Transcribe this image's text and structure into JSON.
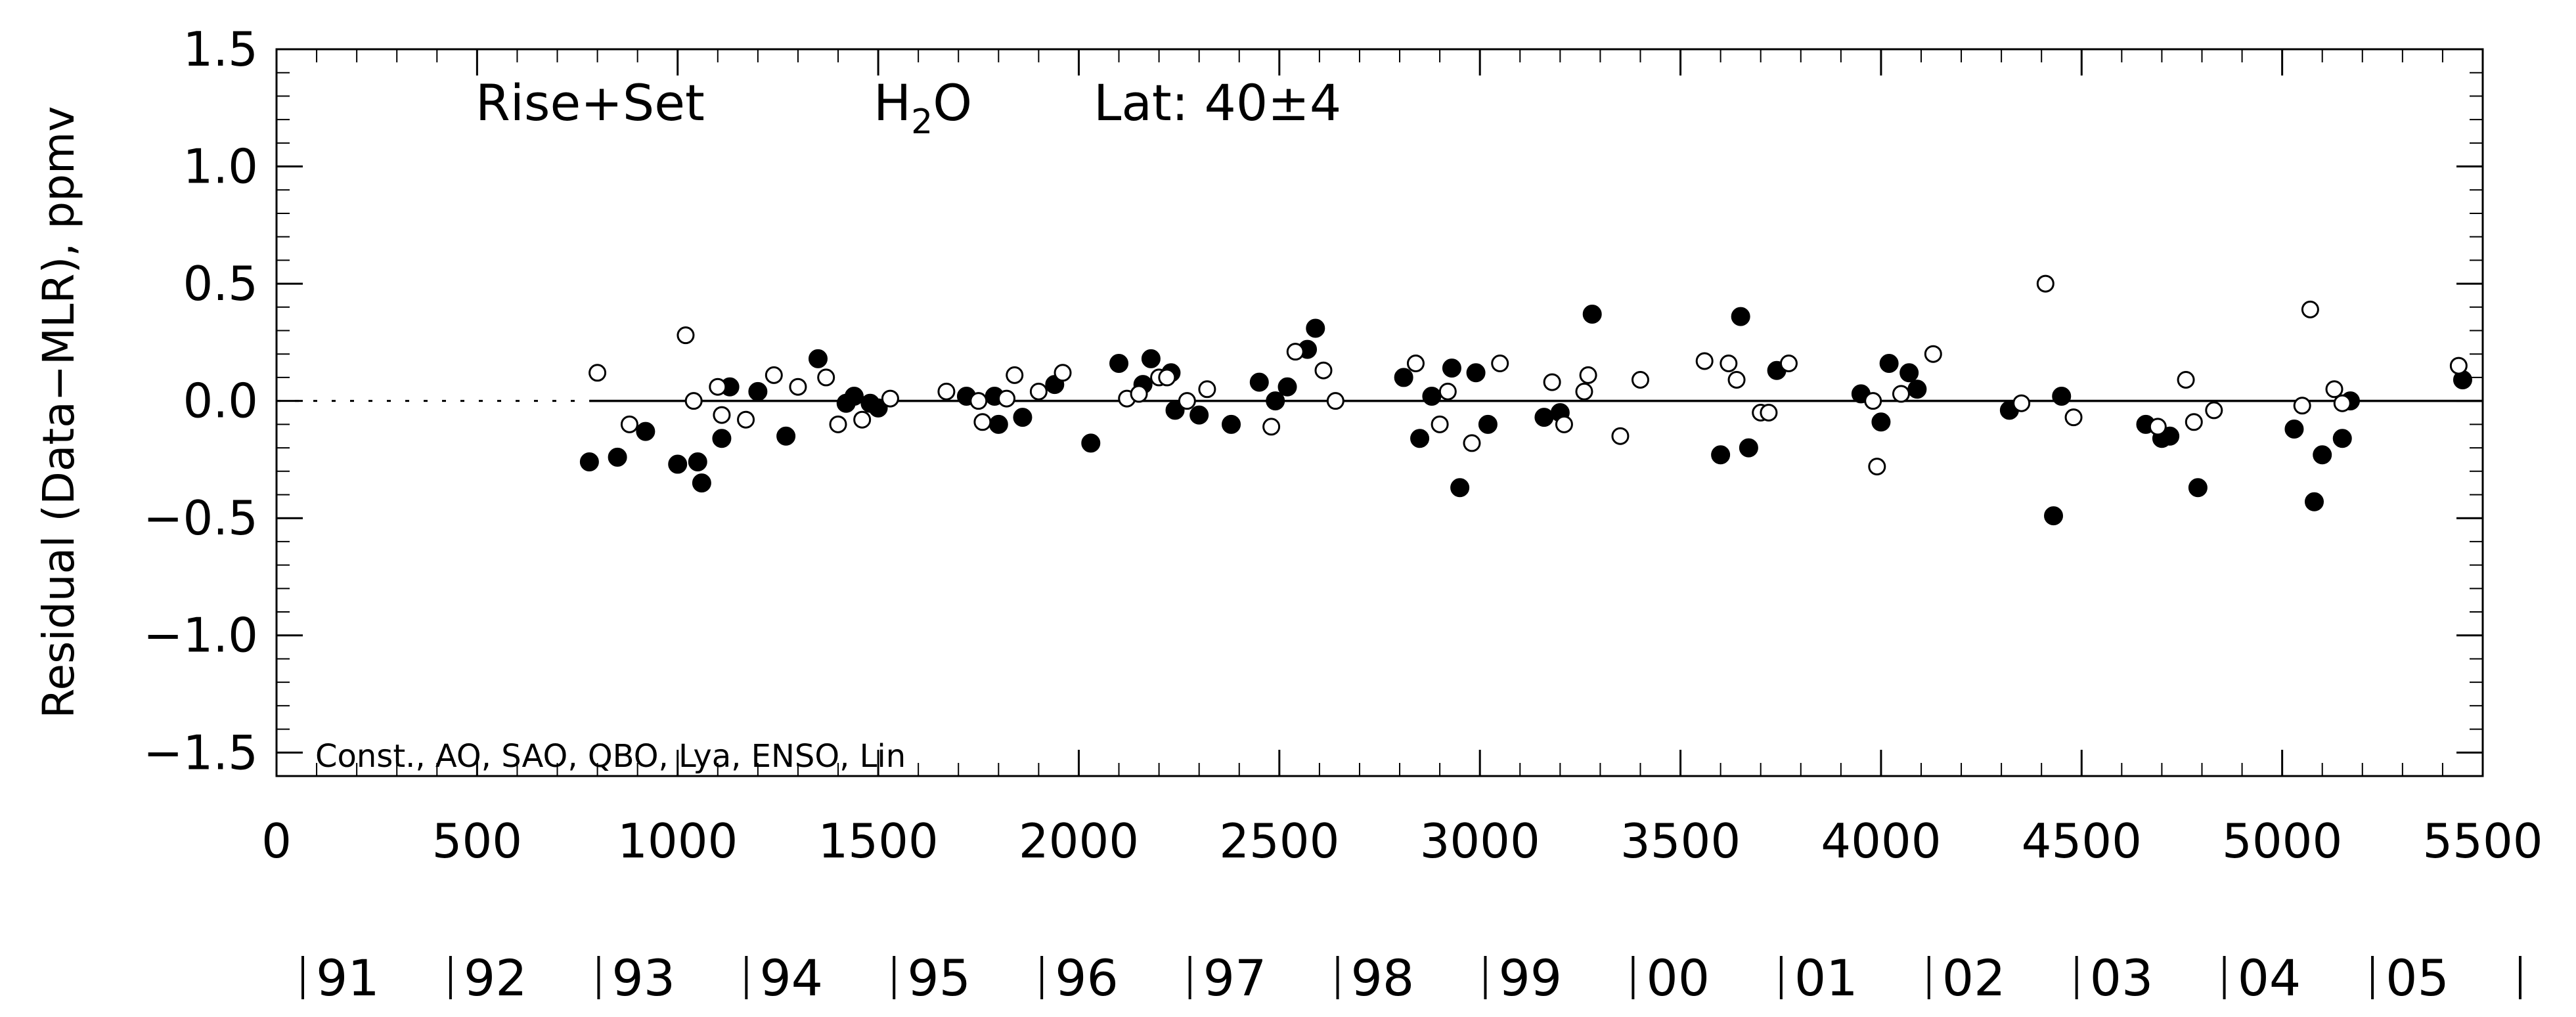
{
  "chart_data": {
    "type": "scatter",
    "annotations": {
      "mode": "Rise+Set",
      "species_main": "H",
      "species_sub": "2",
      "species_tail": "O",
      "lat": "Lat: 40±4",
      "model": "Const., AO, SAO, QBO, Lya, ENSO, Lin"
    },
    "ylabel": "Residual (Data−MLR), ppmv",
    "xlim": [
      0,
      5500
    ],
    "ylim": [
      -1.6,
      1.5
    ],
    "x_ticks": [
      0,
      500,
      1000,
      1500,
      2000,
      2500,
      3000,
      3500,
      4000,
      4500,
      5000,
      5500
    ],
    "x_tick_labels": [
      "0",
      "500",
      "1000",
      "1500",
      "2000",
      "2500",
      "3000",
      "3500",
      "4000",
      "4500",
      "5000",
      "5500"
    ],
    "y_ticks": [
      -1.5,
      -1.0,
      -0.5,
      0.0,
      0.5,
      1.0,
      1.5
    ],
    "y_tick_labels": [
      "−1.5",
      "−1.0",
      "−0.5",
      "0.0",
      "0.5",
      "1.0",
      "1.5"
    ],
    "year_labels": [
      "91",
      "92",
      "93",
      "94",
      "95",
      "96",
      "97",
      "98",
      "99",
      "00",
      "01",
      "02",
      "03",
      "04",
      "05"
    ],
    "year_starts": [
      0,
      365,
      731,
      1096,
      1461,
      1826,
      2192,
      2557,
      2922,
      3287,
      3653,
      4018,
      4383,
      4748,
      5114,
      5479
    ],
    "reference_line": {
      "y": 0,
      "dotted_until_x": 780
    },
    "series": [
      {
        "style": "filled",
        "points": [
          [
            780,
            -0.26
          ],
          [
            850,
            -0.24
          ],
          [
            920,
            -0.13
          ],
          [
            1000,
            -0.27
          ],
          [
            1050,
            -0.26
          ],
          [
            1060,
            -0.35
          ],
          [
            1110,
            -0.16
          ],
          [
            1130,
            0.06
          ],
          [
            1200,
            0.04
          ],
          [
            1270,
            -0.15
          ],
          [
            1350,
            0.18
          ],
          [
            1420,
            -0.01
          ],
          [
            1440,
            0.02
          ],
          [
            1480,
            -0.01
          ],
          [
            1500,
            -0.03
          ],
          [
            1720,
            0.02
          ],
          [
            1790,
            0.02
          ],
          [
            1800,
            -0.1
          ],
          [
            1860,
            -0.07
          ],
          [
            1940,
            0.07
          ],
          [
            2030,
            -0.18
          ],
          [
            2100,
            0.16
          ],
          [
            2160,
            0.07
          ],
          [
            2180,
            0.18
          ],
          [
            2230,
            0.12
          ],
          [
            2240,
            -0.04
          ],
          [
            2300,
            -0.06
          ],
          [
            2380,
            -0.1
          ],
          [
            2450,
            0.08
          ],
          [
            2490,
            0.0
          ],
          [
            2520,
            0.06
          ],
          [
            2570,
            0.22
          ],
          [
            2590,
            0.31
          ],
          [
            2810,
            0.1
          ],
          [
            2850,
            -0.16
          ],
          [
            2880,
            0.02
          ],
          [
            2930,
            0.14
          ],
          [
            2950,
            -0.37
          ],
          [
            2990,
            0.12
          ],
          [
            3020,
            -0.1
          ],
          [
            3160,
            -0.07
          ],
          [
            3200,
            -0.05
          ],
          [
            3280,
            0.37
          ],
          [
            3600,
            -0.23
          ],
          [
            3650,
            0.36
          ],
          [
            3670,
            -0.2
          ],
          [
            3740,
            0.13
          ],
          [
            3950,
            0.03
          ],
          [
            4000,
            -0.09
          ],
          [
            4020,
            0.16
          ],
          [
            4070,
            0.12
          ],
          [
            4090,
            0.05
          ],
          [
            4320,
            -0.04
          ],
          [
            4430,
            -0.49
          ],
          [
            4450,
            0.02
          ],
          [
            4660,
            -0.1
          ],
          [
            4700,
            -0.16
          ],
          [
            4720,
            -0.15
          ],
          [
            4790,
            -0.37
          ],
          [
            5030,
            -0.12
          ],
          [
            5080,
            -0.43
          ],
          [
            5100,
            -0.23
          ],
          [
            5150,
            -0.16
          ],
          [
            5170,
            0.0
          ],
          [
            5450,
            0.09
          ]
        ]
      },
      {
        "style": "open",
        "points": [
          [
            800,
            0.12
          ],
          [
            880,
            -0.1
          ],
          [
            1020,
            0.28
          ],
          [
            1040,
            0.0
          ],
          [
            1100,
            0.06
          ],
          [
            1110,
            -0.06
          ],
          [
            1170,
            -0.08
          ],
          [
            1240,
            0.11
          ],
          [
            1300,
            0.06
          ],
          [
            1370,
            0.1
          ],
          [
            1400,
            -0.1
          ],
          [
            1460,
            -0.08
          ],
          [
            1530,
            0.01
          ],
          [
            1670,
            0.04
          ],
          [
            1750,
            0.0
          ],
          [
            1760,
            -0.09
          ],
          [
            1820,
            0.01
          ],
          [
            1840,
            0.11
          ],
          [
            1900,
            0.04
          ],
          [
            1960,
            0.12
          ],
          [
            2120,
            0.01
          ],
          [
            2150,
            0.03
          ],
          [
            2200,
            0.1
          ],
          [
            2220,
            0.1
          ],
          [
            2270,
            0.0
          ],
          [
            2320,
            0.05
          ],
          [
            2480,
            -0.11
          ],
          [
            2540,
            0.21
          ],
          [
            2610,
            0.13
          ],
          [
            2640,
            0.0
          ],
          [
            2840,
            0.16
          ],
          [
            2900,
            -0.1
          ],
          [
            2920,
            0.04
          ],
          [
            2980,
            -0.18
          ],
          [
            3050,
            0.16
          ],
          [
            3180,
            0.08
          ],
          [
            3210,
            -0.1
          ],
          [
            3260,
            0.04
          ],
          [
            3270,
            0.11
          ],
          [
            3350,
            -0.15
          ],
          [
            3400,
            0.09
          ],
          [
            3560,
            0.17
          ],
          [
            3620,
            0.16
          ],
          [
            3640,
            0.09
          ],
          [
            3700,
            -0.05
          ],
          [
            3720,
            -0.05
          ],
          [
            3770,
            0.16
          ],
          [
            3980,
            0.0
          ],
          [
            3990,
            -0.28
          ],
          [
            4050,
            0.03
          ],
          [
            4130,
            0.2
          ],
          [
            4350,
            -0.01
          ],
          [
            4410,
            0.5
          ],
          [
            4480,
            -0.07
          ],
          [
            4690,
            -0.11
          ],
          [
            4760,
            0.09
          ],
          [
            4780,
            -0.09
          ],
          [
            4830,
            -0.04
          ],
          [
            5050,
            -0.02
          ],
          [
            5070,
            0.39
          ],
          [
            5130,
            0.05
          ],
          [
            5150,
            -0.01
          ],
          [
            5440,
            0.15
          ]
        ]
      }
    ]
  }
}
